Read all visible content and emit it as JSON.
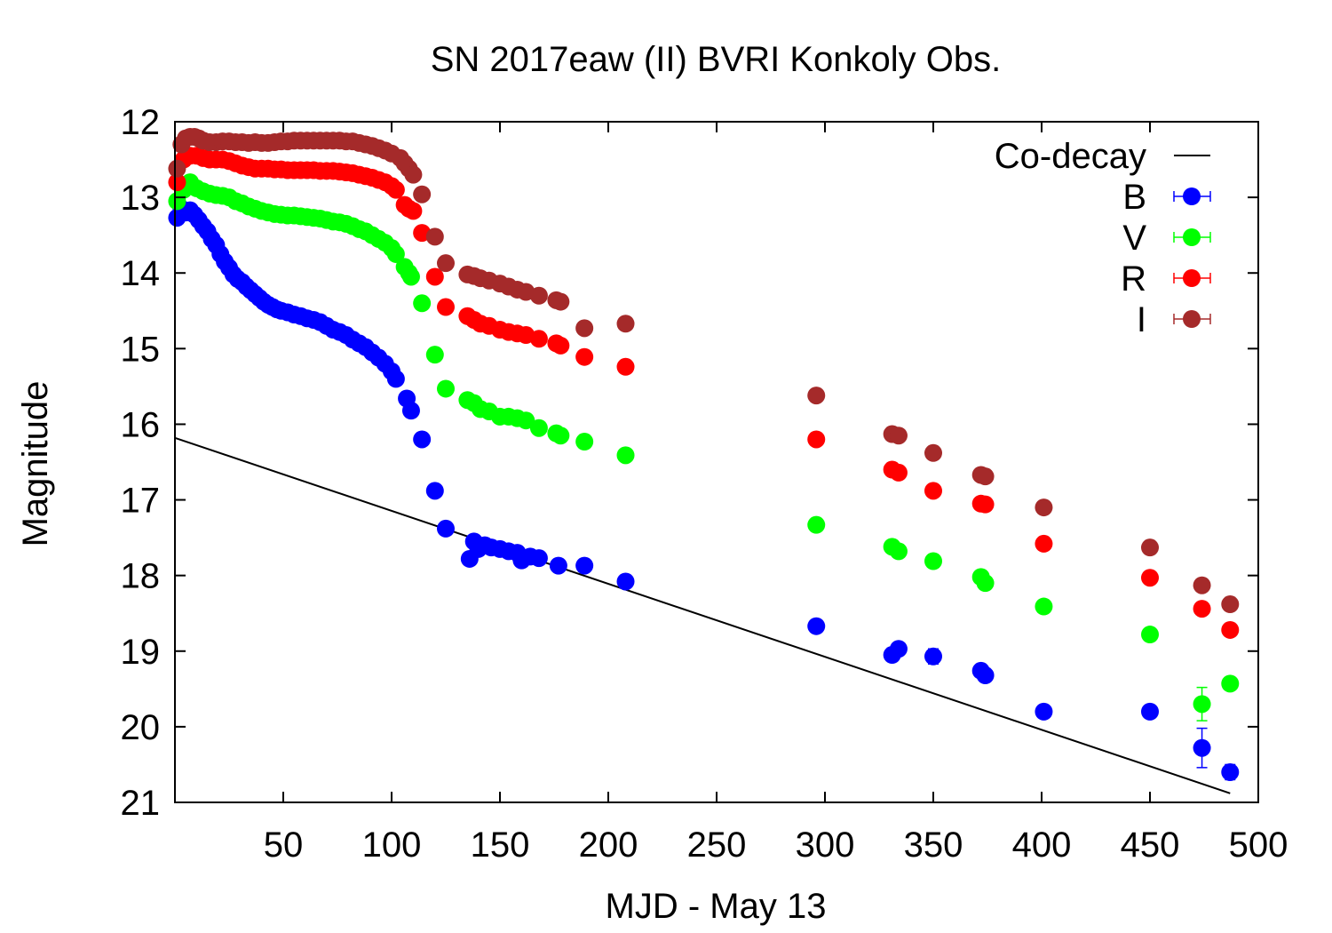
{
  "chart_data": {
    "type": "scatter",
    "title": "SN 2017eaw (II) BVRI Konkoly Obs.",
    "xlabel": "MJD - May 13",
    "ylabel": "Magnitude",
    "xlim": [
      0,
      500
    ],
    "ylim": [
      21,
      12
    ],
    "y_inverted": true,
    "x_ticks": [
      50,
      100,
      150,
      200,
      250,
      300,
      350,
      400,
      450,
      500
    ],
    "y_ticks": [
      12,
      13,
      14,
      15,
      16,
      17,
      18,
      19,
      20,
      21
    ],
    "grid": false,
    "legend_position": "top-right",
    "lines": [
      {
        "name": "Co-decay",
        "color": "#000000",
        "x": [
          0,
          487
        ],
        "y": [
          16.18,
          20.88
        ]
      }
    ],
    "series": [
      {
        "name": "B",
        "color": "#0000ff",
        "x": [
          1,
          3,
          5,
          7,
          9,
          11,
          13,
          15,
          17,
          19,
          21,
          23,
          25,
          27,
          29,
          31,
          33,
          35,
          37,
          39,
          41,
          43,
          45,
          47,
          49,
          52,
          55,
          58,
          61,
          64,
          67,
          70,
          73,
          76,
          79,
          82,
          85,
          88,
          91,
          94,
          97,
          100,
          102,
          107,
          109,
          114,
          120,
          125,
          136,
          138,
          140,
          143,
          146,
          150,
          154,
          158,
          160,
          164,
          168,
          177,
          189,
          208,
          296,
          331,
          334,
          350,
          372,
          374,
          401,
          450,
          474,
          487
        ],
        "y": [
          13.27,
          13.15,
          13.2,
          13.17,
          13.23,
          13.3,
          13.38,
          13.45,
          13.55,
          13.63,
          13.75,
          13.85,
          13.93,
          14.02,
          14.08,
          14.12,
          14.18,
          14.23,
          14.28,
          14.33,
          14.38,
          14.42,
          14.45,
          14.48,
          14.5,
          14.52,
          14.55,
          14.57,
          14.6,
          14.62,
          14.65,
          14.7,
          14.75,
          14.78,
          14.82,
          14.88,
          14.93,
          14.98,
          15.05,
          15.12,
          15.2,
          15.3,
          15.4,
          15.66,
          15.82,
          16.2,
          16.88,
          17.38,
          17.78,
          17.55,
          17.65,
          17.6,
          17.63,
          17.65,
          17.68,
          17.7,
          17.8,
          17.75,
          17.77,
          17.87,
          17.87,
          18.08,
          18.67,
          19.05,
          18.97,
          19.07,
          19.26,
          19.32,
          19.8,
          19.8,
          20.28,
          20.6
        ],
        "yerr": [
          0.02,
          0.02,
          0.02,
          0.02,
          0.02,
          0.02,
          0.02,
          0.02,
          0.02,
          0.02,
          0.02,
          0.02,
          0.02,
          0.02,
          0.02,
          0.02,
          0.02,
          0.02,
          0.02,
          0.02,
          0.02,
          0.02,
          0.02,
          0.02,
          0.02,
          0.02,
          0.02,
          0.02,
          0.02,
          0.02,
          0.02,
          0.02,
          0.02,
          0.02,
          0.02,
          0.02,
          0.02,
          0.02,
          0.02,
          0.02,
          0.02,
          0.02,
          0.02,
          0.03,
          0.03,
          0.03,
          0.04,
          0.04,
          0.04,
          0.04,
          0.04,
          0.04,
          0.04,
          0.04,
          0.04,
          0.04,
          0.04,
          0.04,
          0.04,
          0.04,
          0.05,
          0.05,
          0.06,
          0.08,
          0.08,
          0.1,
          0.08,
          0.08,
          0.08,
          0.08,
          0.26,
          0.1
        ]
      },
      {
        "name": "V",
        "color": "#00ff00",
        "x": [
          1,
          4,
          7,
          10,
          13,
          16,
          19,
          22,
          25,
          28,
          31,
          34,
          37,
          40,
          43,
          46,
          49,
          52,
          55,
          58,
          61,
          64,
          67,
          70,
          73,
          76,
          79,
          82,
          85,
          88,
          91,
          94,
          97,
          100,
          102,
          106,
          108,
          109,
          114,
          120,
          125,
          135,
          138,
          141,
          145,
          150,
          154,
          158,
          162,
          168,
          176,
          178,
          189,
          208,
          296,
          331,
          334,
          350,
          372,
          374,
          401,
          450,
          474,
          487
        ],
        "y": [
          13.05,
          12.9,
          12.8,
          12.88,
          12.92,
          12.95,
          12.97,
          12.98,
          13.0,
          13.05,
          13.08,
          13.12,
          13.15,
          13.18,
          13.2,
          13.22,
          13.23,
          13.24,
          13.24,
          13.25,
          13.26,
          13.27,
          13.28,
          13.3,
          13.32,
          13.33,
          13.35,
          13.38,
          13.42,
          13.45,
          13.5,
          13.55,
          13.6,
          13.67,
          13.75,
          13.92,
          14.0,
          14.05,
          14.4,
          15.08,
          15.53,
          15.68,
          15.72,
          15.8,
          15.83,
          15.9,
          15.9,
          15.92,
          15.95,
          16.05,
          16.12,
          16.15,
          16.23,
          16.41,
          17.33,
          17.62,
          17.68,
          17.81,
          18.02,
          18.1,
          18.41,
          18.78,
          19.7,
          19.43
        ],
        "yerr": [
          0.02,
          0.02,
          0.02,
          0.02,
          0.02,
          0.02,
          0.02,
          0.02,
          0.02,
          0.02,
          0.02,
          0.02,
          0.02,
          0.02,
          0.02,
          0.02,
          0.02,
          0.02,
          0.02,
          0.02,
          0.02,
          0.02,
          0.02,
          0.02,
          0.02,
          0.02,
          0.02,
          0.02,
          0.02,
          0.02,
          0.02,
          0.02,
          0.02,
          0.02,
          0.02,
          0.03,
          0.03,
          0.03,
          0.03,
          0.03,
          0.03,
          0.03,
          0.03,
          0.03,
          0.03,
          0.03,
          0.03,
          0.03,
          0.03,
          0.03,
          0.03,
          0.03,
          0.04,
          0.04,
          0.05,
          0.06,
          0.06,
          0.06,
          0.06,
          0.06,
          0.06,
          0.07,
          0.22,
          0.06
        ]
      },
      {
        "name": "R",
        "color": "#ff0000",
        "x": [
          1,
          4,
          7,
          10,
          13,
          16,
          19,
          22,
          25,
          28,
          31,
          34,
          37,
          40,
          43,
          46,
          49,
          52,
          55,
          58,
          61,
          64,
          67,
          70,
          73,
          76,
          79,
          82,
          85,
          88,
          91,
          94,
          97,
          100,
          102,
          106,
          108,
          110,
          114,
          120,
          125,
          135,
          138,
          141,
          145,
          150,
          154,
          158,
          162,
          168,
          176,
          178,
          189,
          208,
          296,
          331,
          334,
          350,
          372,
          374,
          401,
          450,
          474,
          487
        ],
        "y": [
          12.8,
          12.5,
          12.45,
          12.45,
          12.48,
          12.5,
          12.5,
          12.5,
          12.52,
          12.55,
          12.58,
          12.6,
          12.62,
          12.62,
          12.62,
          12.63,
          12.63,
          12.64,
          12.64,
          12.64,
          12.64,
          12.64,
          12.65,
          12.65,
          12.65,
          12.66,
          12.67,
          12.68,
          12.7,
          12.72,
          12.74,
          12.77,
          12.8,
          12.85,
          12.9,
          13.1,
          13.15,
          13.18,
          13.47,
          14.05,
          14.45,
          14.57,
          14.62,
          14.67,
          14.7,
          14.75,
          14.78,
          14.8,
          14.82,
          14.87,
          14.93,
          14.96,
          15.11,
          15.24,
          16.2,
          16.6,
          16.64,
          16.88,
          17.05,
          17.06,
          17.58,
          18.03,
          18.44,
          18.72
        ],
        "yerr": [
          0.02,
          0.02,
          0.02,
          0.02,
          0.02,
          0.02,
          0.02,
          0.02,
          0.02,
          0.02,
          0.02,
          0.02,
          0.02,
          0.02,
          0.02,
          0.02,
          0.02,
          0.02,
          0.02,
          0.02,
          0.02,
          0.02,
          0.02,
          0.02,
          0.02,
          0.02,
          0.02,
          0.02,
          0.02,
          0.02,
          0.02,
          0.02,
          0.02,
          0.02,
          0.02,
          0.02,
          0.02,
          0.02,
          0.03,
          0.03,
          0.03,
          0.03,
          0.03,
          0.03,
          0.03,
          0.03,
          0.03,
          0.03,
          0.03,
          0.03,
          0.03,
          0.03,
          0.03,
          0.03,
          0.04,
          0.04,
          0.04,
          0.04,
          0.04,
          0.04,
          0.05,
          0.05,
          0.06,
          0.06
        ]
      },
      {
        "name": "I",
        "color": "#a52a2a",
        "x": [
          1,
          3,
          5,
          7,
          9,
          11,
          13,
          16,
          19,
          22,
          25,
          28,
          31,
          34,
          37,
          40,
          43,
          46,
          49,
          52,
          55,
          58,
          61,
          64,
          67,
          70,
          73,
          76,
          79,
          82,
          85,
          88,
          91,
          94,
          97,
          100,
          104,
          106,
          108,
          110,
          114,
          120,
          125,
          135,
          138,
          141,
          145,
          150,
          154,
          158,
          162,
          168,
          176,
          178,
          189,
          208,
          296,
          331,
          334,
          350,
          372,
          374,
          401,
          450,
          474,
          487
        ],
        "y": [
          12.62,
          12.3,
          12.22,
          12.2,
          12.2,
          12.22,
          12.25,
          12.27,
          12.27,
          12.26,
          12.26,
          12.27,
          12.27,
          12.28,
          12.27,
          12.28,
          12.28,
          12.27,
          12.26,
          12.26,
          12.25,
          12.25,
          12.25,
          12.25,
          12.25,
          12.25,
          12.25,
          12.25,
          12.26,
          12.26,
          12.28,
          12.3,
          12.32,
          12.35,
          12.38,
          12.42,
          12.48,
          12.55,
          12.62,
          12.7,
          12.96,
          13.52,
          13.87,
          14.02,
          14.04,
          14.07,
          14.1,
          14.14,
          14.18,
          14.22,
          14.25,
          14.3,
          14.36,
          14.38,
          14.73,
          14.67,
          15.62,
          16.13,
          16.15,
          16.38,
          16.67,
          16.69,
          17.1,
          17.63,
          18.13,
          18.38
        ],
        "yerr": [
          0.02,
          0.02,
          0.02,
          0.02,
          0.02,
          0.02,
          0.02,
          0.02,
          0.02,
          0.02,
          0.02,
          0.02,
          0.02,
          0.02,
          0.02,
          0.02,
          0.02,
          0.02,
          0.02,
          0.02,
          0.02,
          0.02,
          0.02,
          0.02,
          0.02,
          0.02,
          0.02,
          0.02,
          0.02,
          0.02,
          0.02,
          0.02,
          0.02,
          0.02,
          0.02,
          0.02,
          0.02,
          0.02,
          0.02,
          0.02,
          0.02,
          0.02,
          0.02,
          0.02,
          0.02,
          0.02,
          0.02,
          0.02,
          0.02,
          0.02,
          0.02,
          0.02,
          0.02,
          0.02,
          0.03,
          0.03,
          0.03,
          0.03,
          0.03,
          0.03,
          0.03,
          0.03,
          0.04,
          0.04,
          0.05,
          0.05
        ]
      }
    ]
  }
}
